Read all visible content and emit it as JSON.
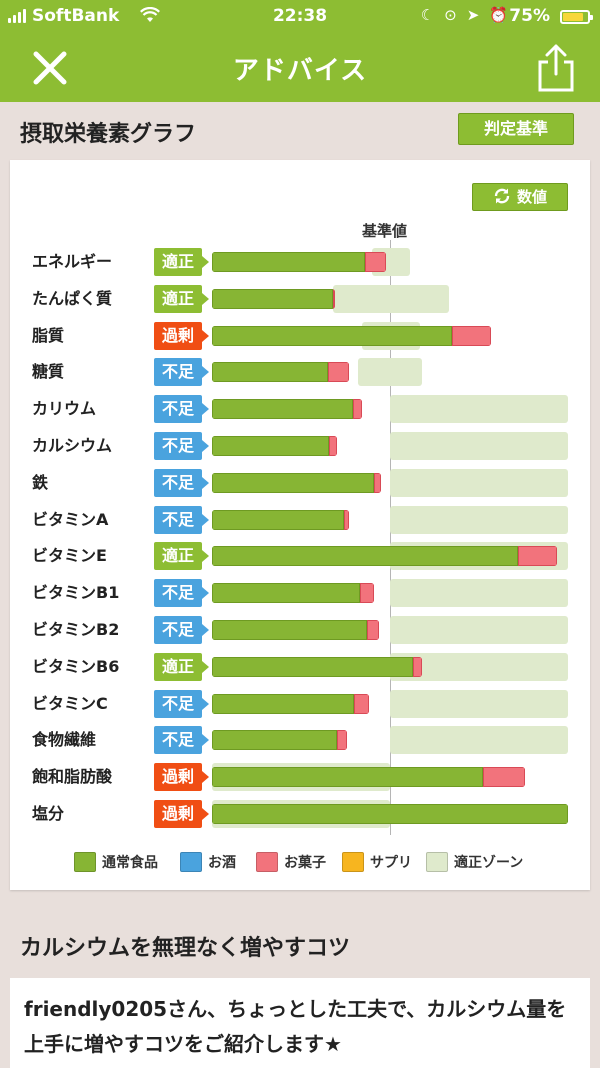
{
  "status_bar": {
    "carrier": "SoftBank",
    "time": "22:38",
    "battery": "75%",
    "battery_level": 0.75,
    "icons": [
      "wifi-icon",
      "moon-icon",
      "rotation-lock-icon",
      "location-icon",
      "alarm-icon"
    ]
  },
  "nav": {
    "title": "アドバイス",
    "close_icon": "close-icon",
    "share_icon": "share-icon"
  },
  "graph_section": {
    "title": "摂取栄養素グラフ",
    "criteria_button": "判定基準",
    "numbers_button": "数値"
  },
  "chart_data": {
    "type": "bar",
    "orientation": "horizontal",
    "stacked": true,
    "reference_label": "基準値",
    "reference_value": 100,
    "units": "percent of reference",
    "categories": [
      "エネルギー",
      "たんぱく質",
      "脂質",
      "糖質",
      "カリウム",
      "カルシウム",
      "鉄",
      "ビタミンA",
      "ビタミンE",
      "ビタミンB1",
      "ビタミンB2",
      "ビタミンB6",
      "ビタミンC",
      "食物繊維",
      "飽和脂肪酸",
      "塩分"
    ],
    "status": [
      "適正",
      "適正",
      "過剰",
      "不足",
      "不足",
      "不足",
      "不足",
      "不足",
      "適正",
      "不足",
      "不足",
      "適正",
      "不足",
      "不足",
      "過剰",
      "過剰"
    ],
    "status_colors": {
      "適正": "#8dbd33",
      "過剰": "#f04e14",
      "不足": "#4aa3de"
    },
    "series": [
      {
        "name": "通常食品",
        "values": [
          86,
          68,
          135,
          65,
          79,
          66,
          91,
          74,
          172,
          83,
          87,
          113,
          80,
          70,
          152,
          200
        ],
        "color": "#87b534"
      },
      {
        "name": "お酒",
        "values": [
          0,
          0,
          0,
          0,
          0,
          0,
          0,
          0,
          0,
          0,
          0,
          0,
          0,
          0,
          0,
          0
        ],
        "color": "#4aa3de"
      },
      {
        "name": "お菓子",
        "values": [
          12,
          1,
          22,
          12,
          5,
          4,
          4,
          3,
          22,
          8,
          7,
          5,
          8,
          6,
          24,
          0
        ],
        "color": "#f2737c"
      },
      {
        "name": "サプリ",
        "values": [
          0,
          0,
          0,
          0,
          0,
          0,
          0,
          0,
          0,
          0,
          0,
          0,
          0,
          0,
          0,
          0
        ],
        "color": "#f7b51f"
      }
    ],
    "suitable_zone": {
      "name": "適正ゾーン",
      "color": "#dfeacc",
      "ranges": [
        [
          90,
          111
        ],
        [
          68,
          133
        ],
        [
          84,
          117
        ],
        [
          82,
          118
        ],
        [
          100,
          200
        ],
        [
          100,
          200
        ],
        [
          100,
          200
        ],
        [
          100,
          200
        ],
        [
          100,
          200
        ],
        [
          100,
          200
        ],
        [
          100,
          200
        ],
        [
          100,
          200
        ],
        [
          100,
          200
        ],
        [
          100,
          200
        ],
        [
          0,
          100
        ],
        [
          0,
          100
        ]
      ]
    },
    "legend": [
      {
        "label": "通常食品",
        "color": "#87b534"
      },
      {
        "label": "お酒",
        "color": "#4aa3de"
      },
      {
        "label": "お菓子",
        "color": "#f2737c"
      },
      {
        "label": "サプリ",
        "color": "#f7b51f"
      },
      {
        "label": "適正ゾーン",
        "color": "#dfeacc"
      }
    ],
    "xlim": [
      0,
      200
    ]
  },
  "tip": {
    "title": "カルシウムを無理なく増やすコツ",
    "body": "friendly0205さん、ちょっとした工夫で、カルシウム量を上手に増やすコツをご紹介します★"
  }
}
